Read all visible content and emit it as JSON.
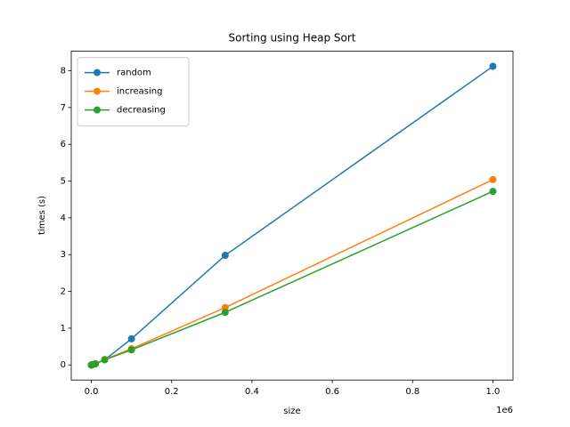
{
  "chart_data": {
    "type": "line",
    "title": "Sorting using Heap Sort",
    "x_label": "size",
    "y_label": "times (s)",
    "x_offset_label": "1e6",
    "x": [
      100,
      333,
      1000,
      3333,
      10000,
      33333,
      100000,
      333333,
      1000000
    ],
    "series": [
      {
        "name": "random",
        "color": "#1f77b4",
        "values": [
          0,
          0,
          0.002,
          0.01,
          0.03,
          0.14,
          0.71,
          2.98,
          8.12
        ]
      },
      {
        "name": "increasing",
        "color": "#ff7f0e",
        "values": [
          0,
          0,
          0.002,
          0.01,
          0.03,
          0.15,
          0.44,
          1.56,
          5.04
        ]
      },
      {
        "name": "decreasing",
        "color": "#2ca02c",
        "values": [
          0,
          0,
          0.002,
          0.01,
          0.03,
          0.14,
          0.41,
          1.43,
          4.72
        ]
      }
    ],
    "xlim": [
      -50000,
      1050000
    ],
    "xticks": [
      {
        "value": 0,
        "label": "0.0"
      },
      {
        "value": 200000,
        "label": "0.2"
      },
      {
        "value": 400000,
        "label": "0.4"
      },
      {
        "value": 600000,
        "label": "0.6"
      },
      {
        "value": 800000,
        "label": "0.8"
      },
      {
        "value": 1000000,
        "label": "1.0"
      }
    ],
    "ylim": [
      -0.41,
      8.53
    ],
    "yticks": [
      0,
      1,
      2,
      3,
      4,
      5,
      6,
      7,
      8
    ],
    "grid": false,
    "legend": "upper-left",
    "markers": true
  }
}
